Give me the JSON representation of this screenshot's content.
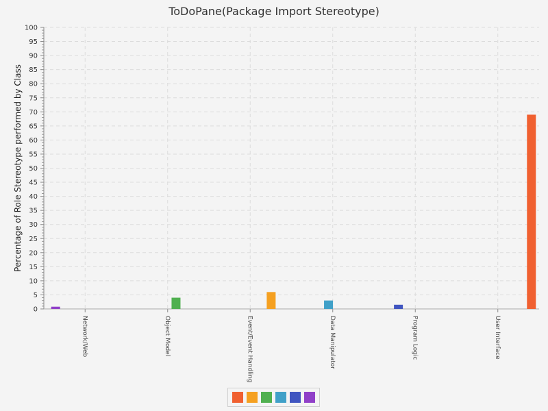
{
  "chart_data": {
    "type": "bar",
    "title": "ToDoPane(Package Import Stereotype)",
    "ylabel": "Percentage of Role Stereotype performed by Class",
    "xlabel": "",
    "ylim": [
      0,
      100
    ],
    "ytick_step": 5,
    "grid": true,
    "legend_placement": "bottom-center",
    "categories": [
      "Network/Web",
      "Object Model",
      "Event/Event Handling",
      "Data Manipulator",
      "Program Logic",
      "User Interface"
    ],
    "series": [
      {
        "color": "#f06030",
        "values": [
          0,
          0,
          0,
          0,
          0,
          69
        ]
      },
      {
        "color": "#f5a020",
        "values": [
          0,
          0,
          6,
          0,
          0,
          0
        ]
      },
      {
        "color": "#50b050",
        "values": [
          0,
          4,
          0,
          0,
          0,
          0
        ]
      },
      {
        "color": "#40a0c8",
        "values": [
          0,
          0,
          0,
          3,
          0,
          0
        ]
      },
      {
        "color": "#4055c0",
        "values": [
          0,
          0,
          0,
          0,
          1.5,
          0
        ]
      },
      {
        "color": "#9040c8",
        "values": [
          0.8,
          0,
          0,
          0,
          0,
          0
        ]
      }
    ]
  }
}
